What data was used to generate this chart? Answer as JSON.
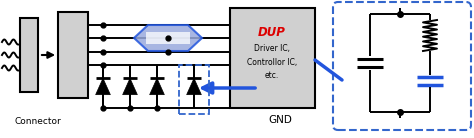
{
  "bg_color": "#ffffff",
  "line_color": "#000000",
  "blue_color": "#2255dd",
  "blue_fill": "#7788cc",
  "blue_light": "#99aadd",
  "dashed_blue": "#3366cc",
  "red_color": "#dd0000",
  "gray_fill": "#d0d0d0",
  "connector_label": "Connector",
  "dup_label": "DUP",
  "dup_sub": "Driver IC,\nControllor IC,\netc.",
  "gnd_label": "GND",
  "figsize": [
    4.74,
    1.38
  ],
  "dpi": 100
}
